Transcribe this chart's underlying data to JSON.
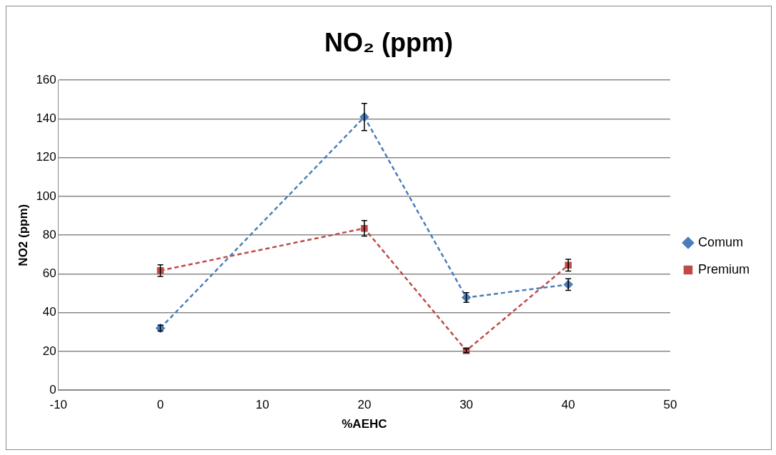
{
  "chart_data": {
    "type": "line",
    "title": "NO₂ (ppm)",
    "xlabel": "%AEHC",
    "ylabel": "NO2 (ppm)",
    "xlim": [
      -10,
      50
    ],
    "xticks": [
      -10,
      0,
      10,
      20,
      30,
      40,
      50
    ],
    "ylim": [
      0,
      160
    ],
    "yticks": [
      0,
      20,
      40,
      60,
      80,
      100,
      120,
      140,
      160
    ],
    "grid": "y",
    "legend": "right",
    "line_style": "dashed",
    "series": [
      {
        "name": "Comum",
        "color": "#4a7ebb",
        "marker": "diamond",
        "x": [
          0,
          20,
          30,
          40
        ],
        "values": [
          32,
          141,
          47.8,
          54.5
        ],
        "errors": [
          1.5,
          7,
          2.5,
          3
        ]
      },
      {
        "name": "Premium",
        "color": "#be4b48",
        "marker": "square",
        "x": [
          0,
          20,
          30,
          40
        ],
        "values": [
          61.7,
          83.5,
          20.4,
          64.5
        ],
        "errors": [
          3,
          4,
          1,
          3
        ]
      }
    ]
  }
}
